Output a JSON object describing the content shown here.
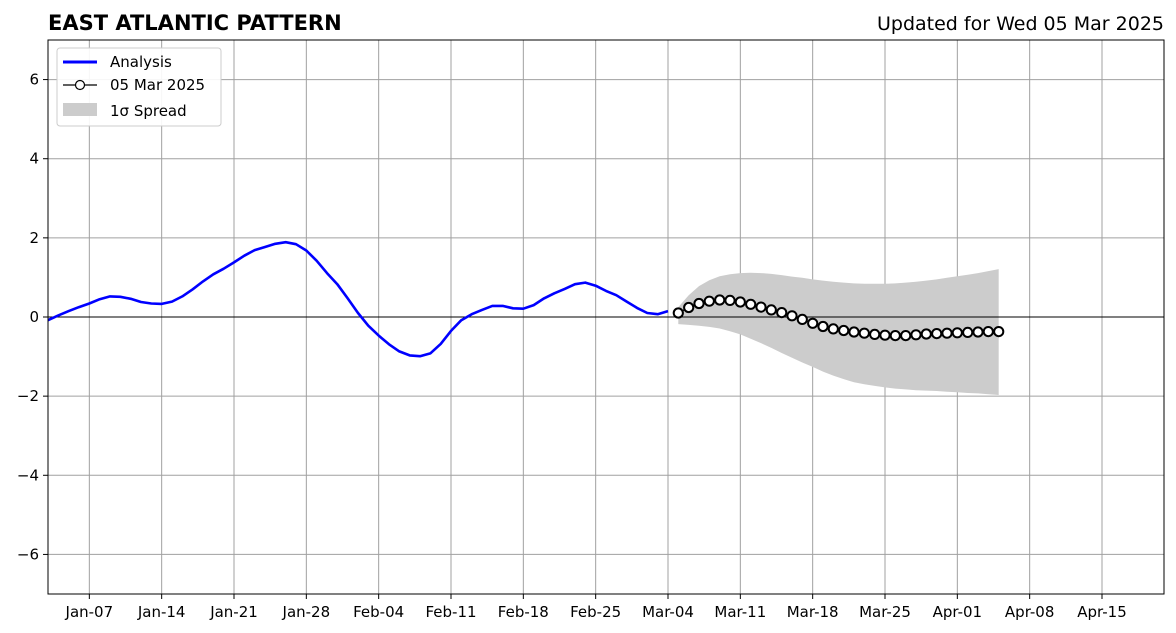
{
  "chart_data": {
    "type": "line",
    "title": "EAST ATLANTIC PATTERN",
    "subtitle": "Updated for Wed 05 Mar 2025",
    "xlabel": "",
    "ylabel": "",
    "xlim": [
      "2025-01-03",
      "2025-04-21"
    ],
    "ylim": [
      -7,
      7
    ],
    "yticks": [
      -6,
      -4,
      -2,
      0,
      2,
      4,
      6
    ],
    "ytick_labels": [
      "−6",
      "−4",
      "−2",
      "0",
      "2",
      "4",
      "6"
    ],
    "xticks": [
      "2025-01-07",
      "2025-01-14",
      "2025-01-21",
      "2025-01-28",
      "2025-02-04",
      "2025-02-11",
      "2025-02-18",
      "2025-02-25",
      "2025-03-04",
      "2025-03-11",
      "2025-03-18",
      "2025-03-25",
      "2025-04-01",
      "2025-04-08",
      "2025-04-15"
    ],
    "xtick_labels": [
      "Jan-07",
      "Jan-14",
      "Jan-21",
      "Jan-28",
      "Feb-04",
      "Feb-11",
      "Feb-18",
      "Feb-25",
      "Mar-04",
      "Mar-11",
      "Mar-18",
      "Mar-25",
      "Apr-01",
      "Apr-08",
      "Apr-15"
    ],
    "grid": true,
    "legend_position": "top-left",
    "zero_line": true,
    "series": [
      {
        "name": "Analysis",
        "kind": "line",
        "color": "#0000ff",
        "x": [
          "2025-01-03",
          "2025-01-04",
          "2025-01-05",
          "2025-01-06",
          "2025-01-07",
          "2025-01-08",
          "2025-01-09",
          "2025-01-10",
          "2025-01-11",
          "2025-01-12",
          "2025-01-13",
          "2025-01-14",
          "2025-01-15",
          "2025-01-16",
          "2025-01-17",
          "2025-01-18",
          "2025-01-19",
          "2025-01-20",
          "2025-01-21",
          "2025-01-22",
          "2025-01-23",
          "2025-01-24",
          "2025-01-25",
          "2025-01-26",
          "2025-01-27",
          "2025-01-28",
          "2025-01-29",
          "2025-01-30",
          "2025-01-31",
          "2025-02-01",
          "2025-02-02",
          "2025-02-03",
          "2025-02-04",
          "2025-02-05",
          "2025-02-06",
          "2025-02-07",
          "2025-02-08",
          "2025-02-09",
          "2025-02-10",
          "2025-02-11",
          "2025-02-12",
          "2025-02-13",
          "2025-02-14",
          "2025-02-15",
          "2025-02-16",
          "2025-02-17",
          "2025-02-18",
          "2025-02-19",
          "2025-02-20",
          "2025-02-21",
          "2025-02-22",
          "2025-02-23",
          "2025-02-24",
          "2025-02-25",
          "2025-02-26",
          "2025-02-27",
          "2025-02-28",
          "2025-03-01",
          "2025-03-02",
          "2025-03-03",
          "2025-03-04",
          "2025-03-05"
        ],
        "y": [
          -0.08,
          0.04,
          0.15,
          0.25,
          0.34,
          0.45,
          0.52,
          0.51,
          0.46,
          0.38,
          0.34,
          0.33,
          0.39,
          0.52,
          0.7,
          0.9,
          1.08,
          1.22,
          1.38,
          1.55,
          1.69,
          1.77,
          1.85,
          1.89,
          1.84,
          1.68,
          1.42,
          1.11,
          0.83,
          0.47,
          0.1,
          -0.22,
          -0.47,
          -0.69,
          -0.87,
          -0.97,
          -0.99,
          -0.92,
          -0.68,
          -0.35,
          -0.08,
          0.07,
          0.18,
          0.28,
          0.28,
          0.22,
          0.21,
          0.3,
          0.47,
          0.6,
          0.71,
          0.83,
          0.87,
          0.79,
          0.66,
          0.55,
          0.39,
          0.23,
          0.1,
          0.07,
          0.15,
          null
        ]
      },
      {
        "name": "05 Mar 2025",
        "kind": "line-markers",
        "color": "#000000",
        "marker_fill": "#ffffff",
        "x": [
          "2025-03-05",
          "2025-03-06",
          "2025-03-07",
          "2025-03-08",
          "2025-03-09",
          "2025-03-10",
          "2025-03-11",
          "2025-03-12",
          "2025-03-13",
          "2025-03-14",
          "2025-03-15",
          "2025-03-16",
          "2025-03-17",
          "2025-03-18",
          "2025-03-19",
          "2025-03-20",
          "2025-03-21",
          "2025-03-22",
          "2025-03-23",
          "2025-03-24",
          "2025-03-25",
          "2025-03-26",
          "2025-03-27",
          "2025-03-28",
          "2025-03-29",
          "2025-03-30",
          "2025-03-31",
          "2025-04-01",
          "2025-04-02",
          "2025-04-03",
          "2025-04-04",
          "2025-04-05"
        ],
        "y": [
          0.1,
          0.24,
          0.34,
          0.4,
          0.43,
          0.42,
          0.38,
          0.32,
          0.25,
          0.18,
          0.11,
          0.03,
          -0.06,
          -0.16,
          -0.24,
          -0.3,
          -0.34,
          -0.38,
          -0.41,
          -0.44,
          -0.46,
          -0.47,
          -0.47,
          -0.45,
          -0.43,
          -0.42,
          -0.41,
          -0.4,
          -0.39,
          -0.38,
          -0.37,
          -0.37
        ]
      }
    ],
    "spread": {
      "name": "1σ Spread",
      "color": "#cccccc",
      "x": [
        "2025-03-05",
        "2025-03-06",
        "2025-03-07",
        "2025-03-08",
        "2025-03-09",
        "2025-03-10",
        "2025-03-11",
        "2025-03-12",
        "2025-03-13",
        "2025-03-14",
        "2025-03-15",
        "2025-03-16",
        "2025-03-17",
        "2025-03-18",
        "2025-03-19",
        "2025-03-20",
        "2025-03-21",
        "2025-03-22",
        "2025-03-23",
        "2025-03-24",
        "2025-03-25",
        "2025-03-26",
        "2025-03-27",
        "2025-03-28",
        "2025-03-29",
        "2025-03-30",
        "2025-03-31",
        "2025-04-01",
        "2025-04-02",
        "2025-04-03",
        "2025-04-04",
        "2025-04-05"
      ],
      "upper": [
        0.25,
        0.55,
        0.78,
        0.93,
        1.03,
        1.08,
        1.11,
        1.12,
        1.11,
        1.09,
        1.06,
        1.02,
        0.99,
        0.95,
        0.92,
        0.89,
        0.87,
        0.85,
        0.84,
        0.84,
        0.84,
        0.85,
        0.87,
        0.89,
        0.92,
        0.95,
        0.99,
        1.03,
        1.07,
        1.11,
        1.16,
        1.21
      ],
      "lower": [
        -0.18,
        -0.2,
        -0.22,
        -0.25,
        -0.29,
        -0.36,
        -0.44,
        -0.55,
        -0.66,
        -0.78,
        -0.91,
        -1.03,
        -1.15,
        -1.26,
        -1.38,
        -1.48,
        -1.57,
        -1.65,
        -1.7,
        -1.74,
        -1.78,
        -1.81,
        -1.83,
        -1.85,
        -1.86,
        -1.87,
        -1.89,
        -1.9,
        -1.92,
        -1.93,
        -1.95,
        -1.97
      ]
    }
  }
}
